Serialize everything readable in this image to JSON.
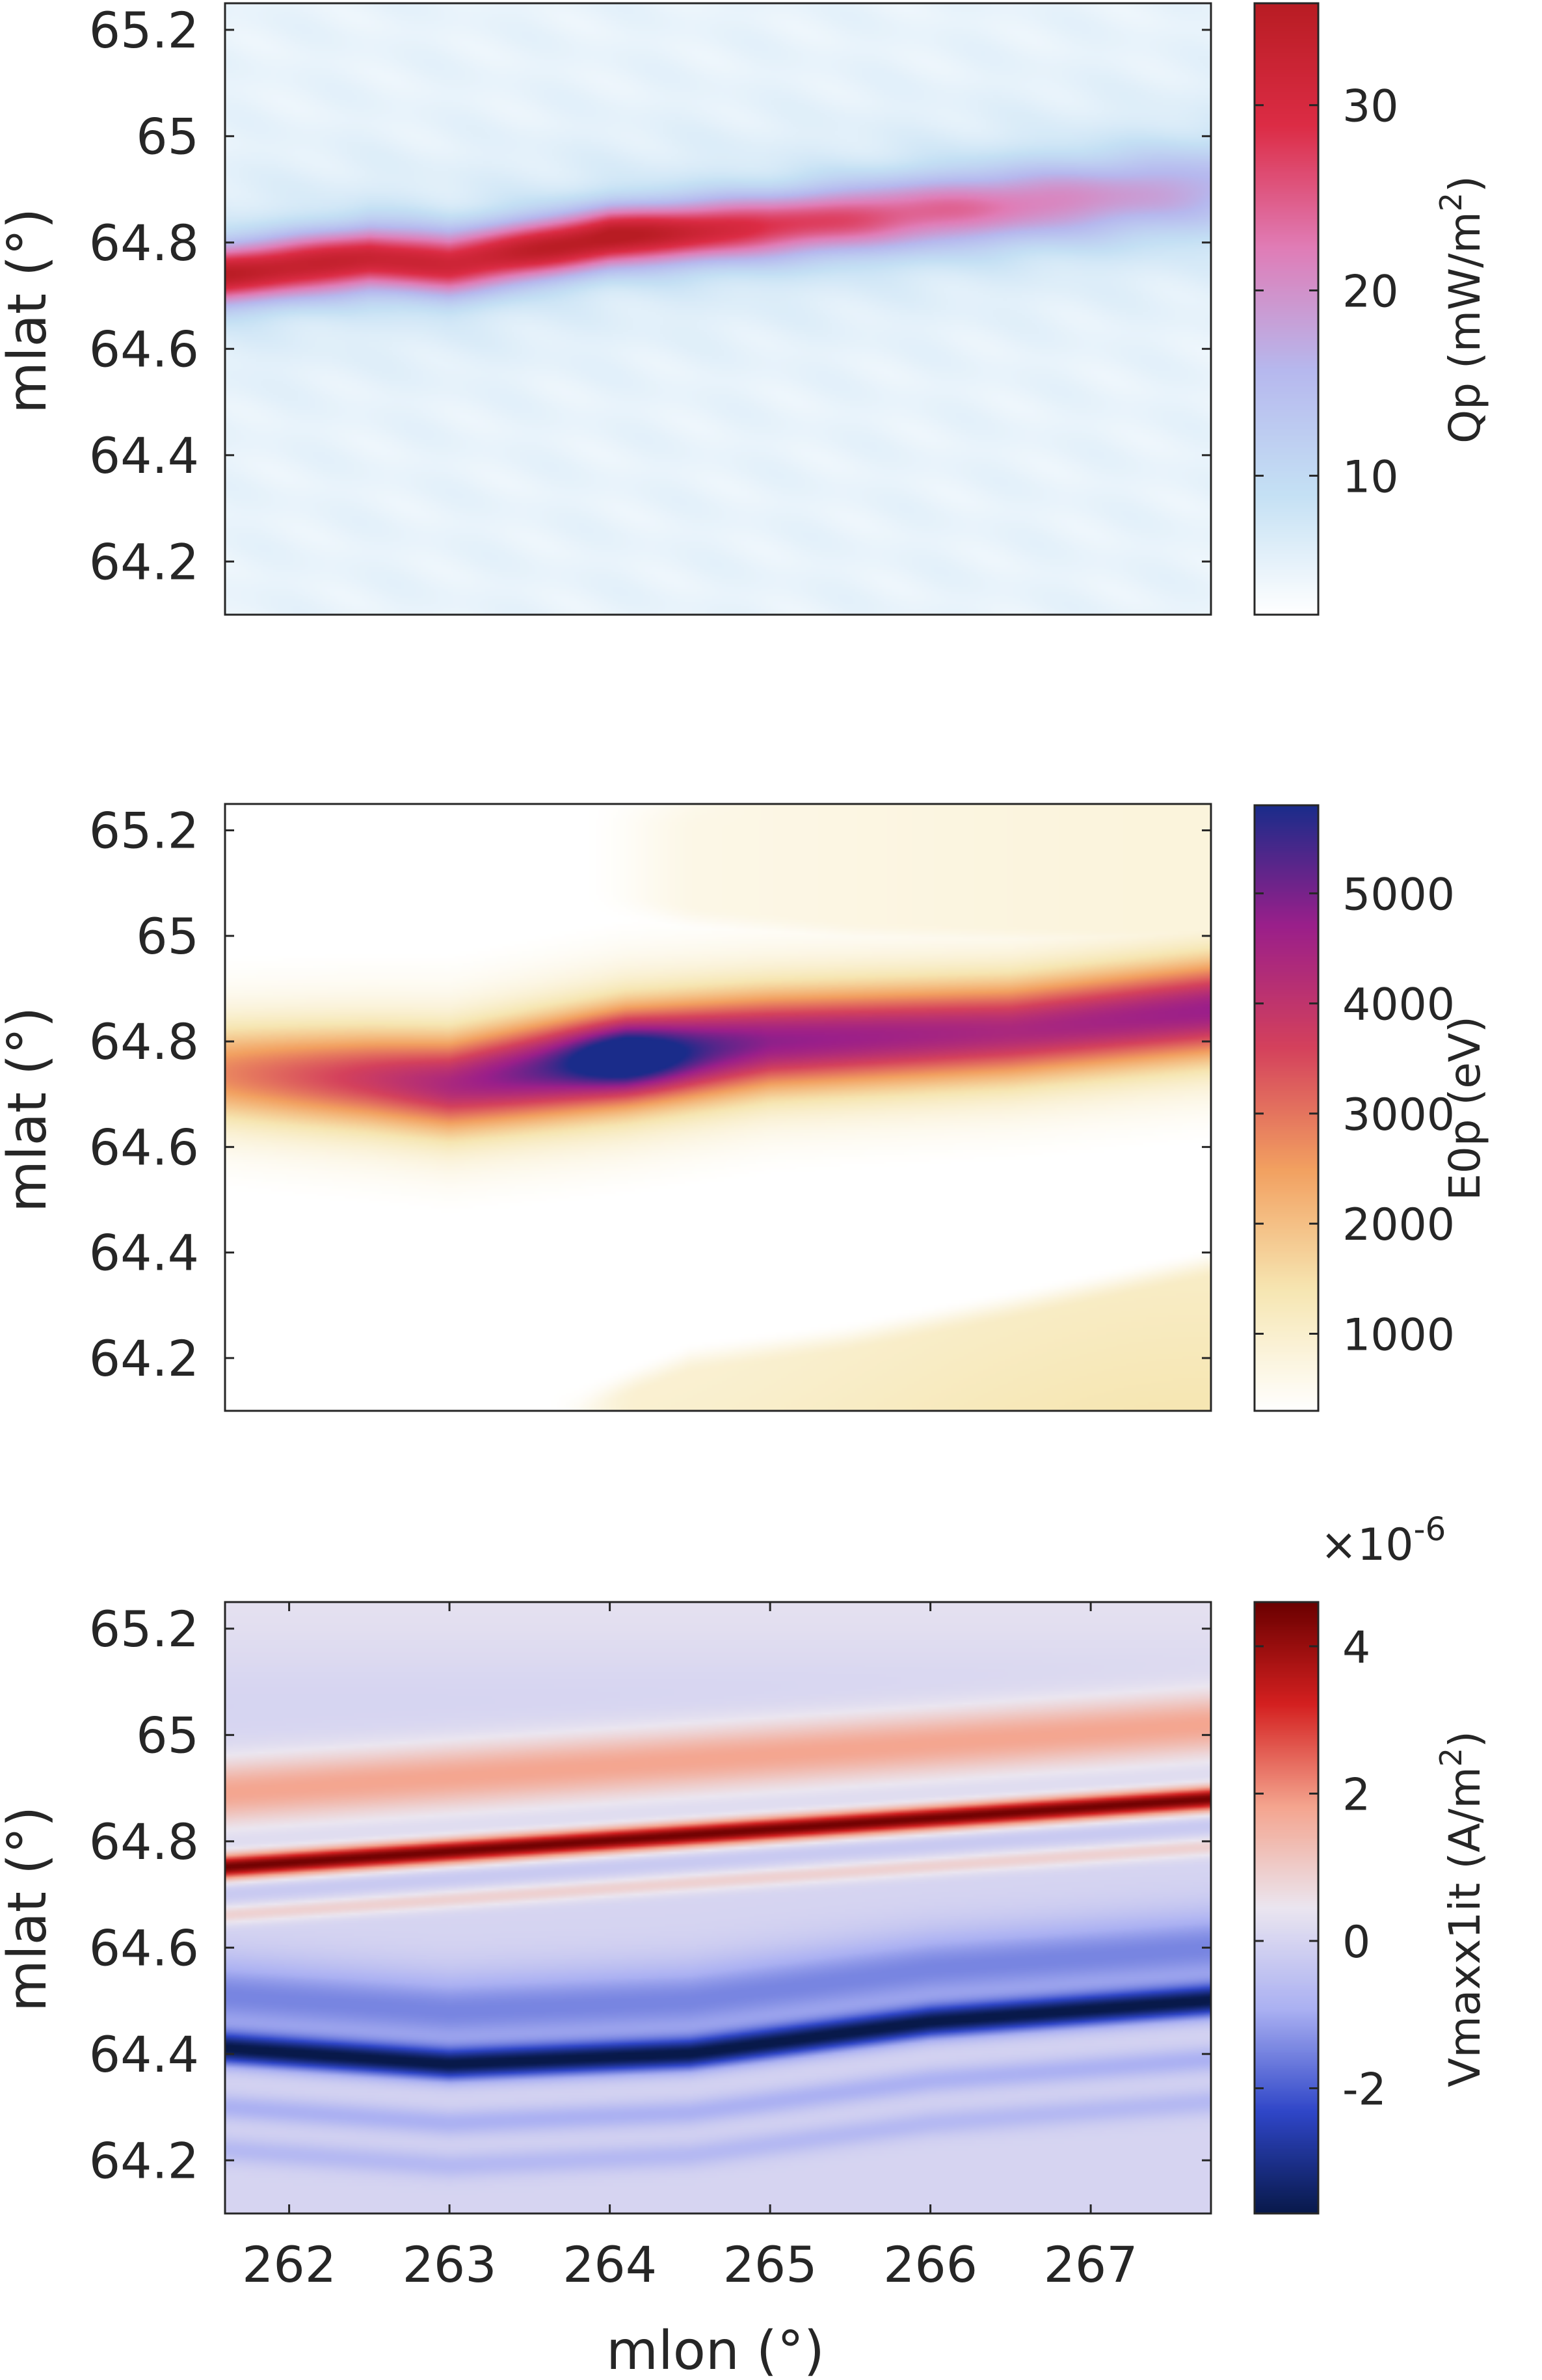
{
  "chart_data": [
    {
      "type": "heatmap",
      "ylabel": "mlat (°)",
      "xlim": [
        261.6,
        267.75
      ],
      "ylim": [
        64.1,
        65.25
      ],
      "yticks": [
        "64.2",
        "64.4",
        "64.6",
        "64.8",
        "65",
        "65.2"
      ],
      "xticks": [],
      "colorbar": {
        "label_main": "Qp (mW/m",
        "label_sup": "2",
        "label_end": ")",
        "range": [
          2.5,
          35.5
        ],
        "ticks": [
          "10",
          "20",
          "30"
        ],
        "colormap": [
          "#ffffff",
          "#c4e0f4",
          "#b6b8ee",
          "#e07db7",
          "#dc2c45",
          "#b81c23"
        ]
      },
      "features": [
        {
          "desc_value": "peak ~34 mW/m2 band",
          "lon": [
            261.6,
            262.5,
            263.0,
            264.0,
            265.0,
            266.5,
            267.75
          ],
          "lat": [
            64.74,
            64.77,
            64.76,
            64.81,
            64.83,
            64.87,
            64.9
          ],
          "peak": [
            32,
            30,
            29,
            34,
            26,
            20,
            14
          ],
          "width": [
            0.055,
            0.06,
            0.06,
            0.055,
            0.06,
            0.07,
            0.08
          ]
        }
      ],
      "background_value": 5
    },
    {
      "type": "heatmap",
      "ylabel": "mlat (°)",
      "xlim": [
        261.6,
        267.75
      ],
      "ylim": [
        64.1,
        65.25
      ],
      "yticks": [
        "64.2",
        "64.4",
        "64.6",
        "64.8",
        "65",
        "65.2"
      ],
      "xticks": [],
      "colorbar": {
        "label_main": "E0p (eV)",
        "range": [
          300,
          5800
        ],
        "ticks": [
          "1000",
          "2000",
          "3000",
          "4000",
          "5000"
        ],
        "colormap": [
          "#ffffff",
          "#f6e6b2",
          "#f2a060",
          "#d4415c",
          "#9b1f8a",
          "#1a2c8a"
        ]
      },
      "features": [
        {
          "desc_value": "main arc ~5700 eV peak at 264.1, 64.77",
          "lon": [
            261.6,
            262.5,
            263.0,
            264.1,
            265.0,
            266.5,
            267.75
          ],
          "lat": [
            64.74,
            64.73,
            64.72,
            64.77,
            64.8,
            64.82,
            64.86
          ],
          "peak": [
            2600,
            3600,
            4200,
            5700,
            4600,
            4200,
            4500
          ]
        },
        {
          "desc_value": "upper faint region ~800 eV",
          "lon_start": 264.0,
          "value": 800
        },
        {
          "desc_value": "lower faint region ~1400 eV",
          "lon_start": 263.8,
          "value": 1400
        }
      ]
    },
    {
      "type": "heatmap",
      "ylabel": "mlat (°)",
      "xlabel": "mlon (°)",
      "xlim": [
        261.6,
        267.75
      ],
      "ylim": [
        64.1,
        65.25
      ],
      "yticks": [
        "64.2",
        "64.4",
        "64.6",
        "64.8",
        "65",
        "65.2"
      ],
      "xticks": [
        "262",
        "263",
        "264",
        "265",
        "266",
        "267"
      ],
      "colorbar": {
        "label_main": "Vmaxx1it (A/m",
        "label_sup": "2",
        "label_end": ")",
        "multiplier_base": "×10",
        "multiplier_exp": "-6",
        "range": [
          -3.7,
          4.6
        ],
        "ticks": [
          "-2",
          "0",
          "2",
          "4"
        ],
        "colormap": [
          "#08194a",
          "#2f46c8",
          "#aab0f2",
          "#ebe6f0",
          "#f4a48e",
          "#d42020",
          "#6a0000"
        ]
      },
      "features": [
        {
          "desc_value": "upward current peak ~4.5e-6",
          "lat_at_262": 64.76,
          "lat_at_267.75": 64.88,
          "peak": 4.5
        },
        {
          "desc_value": "downward current ~-3.6e-6",
          "lon": [
            261.6,
            263.0,
            264.5,
            266.0,
            267.75
          ],
          "lat": [
            64.41,
            64.38,
            64.4,
            64.46,
            64.5
          ],
          "peak": -3.6
        }
      ]
    }
  ]
}
